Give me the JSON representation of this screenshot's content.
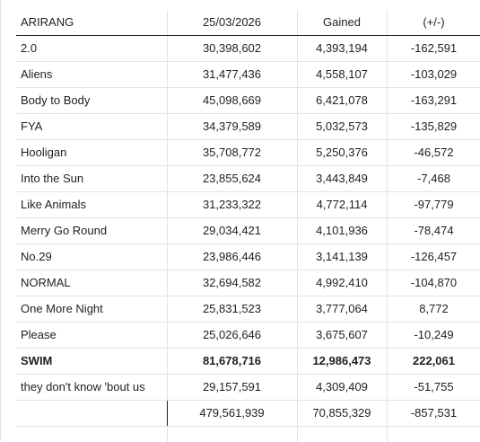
{
  "table": {
    "header": [
      "ARIRANG",
      "25/03/2026",
      "Gained",
      "(+/-)"
    ],
    "rows": [
      {
        "name": "2.0",
        "total": "30,398,602",
        "gained": "4,393,194",
        "change": "-162,591"
      },
      {
        "name": "Aliens",
        "total": "31,477,436",
        "gained": "4,558,107",
        "change": "-103,029"
      },
      {
        "name": "Body to Body",
        "total": "45,098,669",
        "gained": "6,421,078",
        "change": "-163,291"
      },
      {
        "name": "FYA",
        "total": "34,379,589",
        "gained": "5,032,573",
        "change": "-135,829"
      },
      {
        "name": "Hooligan",
        "total": "35,708,772",
        "gained": "5,250,376",
        "change": "-46,572"
      },
      {
        "name": "Into the Sun",
        "total": "23,855,624",
        "gained": "3,443,849",
        "change": "-7,468"
      },
      {
        "name": "Like Animals",
        "total": "31,233,322",
        "gained": "4,772,114",
        "change": "-97,779"
      },
      {
        "name": "Merry Go Round",
        "total": "29,034,421",
        "gained": "4,101,936",
        "change": "-78,474"
      },
      {
        "name": "No.29",
        "total": "23,986,446",
        "gained": "3,141,139",
        "change": "-126,457"
      },
      {
        "name": "NORMAL",
        "total": "32,694,582",
        "gained": "4,992,410",
        "change": "-104,870"
      },
      {
        "name": "One More Night",
        "total": "25,831,523",
        "gained": "3,777,064",
        "change": "8,772"
      },
      {
        "name": "Please",
        "total": "25,026,646",
        "gained": "3,675,607",
        "change": "-10,249"
      },
      {
        "name": "SWIM",
        "total": "81,678,716",
        "gained": "12,986,473",
        "change": "222,061",
        "bold": true
      },
      {
        "name": "they don't know 'bout us",
        "total": "29,157,591",
        "gained": "4,309,409",
        "change": "-51,755"
      }
    ],
    "totals": {
      "name": "",
      "total": "479,561,939",
      "gained": "70,855,329",
      "change": "-857,531"
    }
  }
}
